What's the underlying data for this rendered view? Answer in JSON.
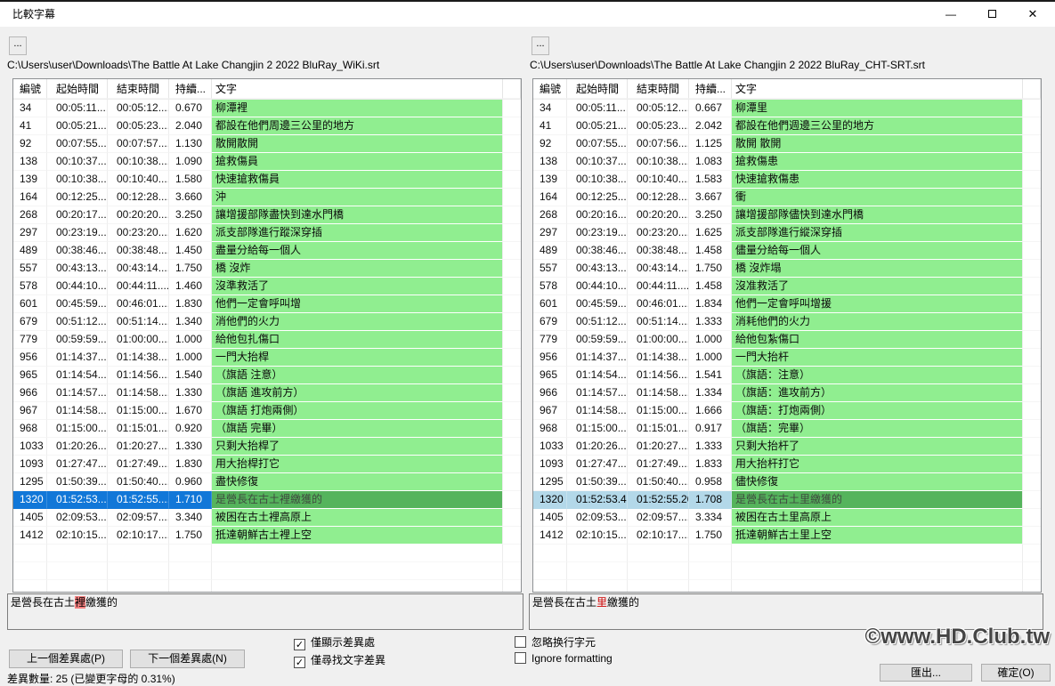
{
  "window": {
    "title": "比較字幕"
  },
  "icons": {
    "minimize": "—",
    "close": "✕"
  },
  "columns": [
    "編號",
    "起始時間",
    "結束時間",
    "持續...",
    "文字"
  ],
  "left": {
    "browse": "...",
    "path": "C:\\Users\\user\\Downloads\\The Battle At Lake Changjin 2 2022 BluRay_WiKi.srt",
    "selected_index": 22,
    "selection_style": "active",
    "rows": [
      [
        "34",
        "00:05:11....",
        "00:05:12....",
        "0.670",
        "柳潭裡"
      ],
      [
        "41",
        "00:05:21....",
        "00:05:23....",
        "2.040",
        "都設在他們周邊三公里的地方"
      ],
      [
        "92",
        "00:07:55....",
        "00:07:57....",
        "1.130",
        "散開散開"
      ],
      [
        "138",
        "00:10:37....",
        "00:10:38....",
        "1.090",
        "搶救傷員"
      ],
      [
        "139",
        "00:10:38....",
        "00:10:40....",
        "1.580",
        "快速搶救傷員"
      ],
      [
        "164",
        "00:12:25....",
        "00:12:28....",
        "3.660",
        "沖"
      ],
      [
        "268",
        "00:20:17....",
        "00:20:20....",
        "3.250",
        "讓增援部隊盡快到達水門橋"
      ],
      [
        "297",
        "00:23:19....",
        "00:23:20....",
        "1.620",
        "派支部隊進行蹤深穿插"
      ],
      [
        "489",
        "00:38:46....",
        "00:38:48....",
        "1.450",
        "盡量分給每一個人"
      ],
      [
        "557",
        "00:43:13....",
        "00:43:14....",
        "1.750",
        "橋 沒炸"
      ],
      [
        "578",
        "00:44:10....",
        "00:44:11....",
        "1.460",
        "沒準救活了"
      ],
      [
        "601",
        "00:45:59....",
        "00:46:01....",
        "1.830",
        "他們一定會呼叫增"
      ],
      [
        "679",
        "00:51:12....",
        "00:51:14....",
        "1.340",
        "消他們的火力"
      ],
      [
        "779",
        "00:59:59....",
        "01:00:00....",
        "1.000",
        "給他包扎傷口"
      ],
      [
        "956",
        "01:14:37....",
        "01:14:38....",
        "1.000",
        "一門大抬桿"
      ],
      [
        "965",
        "01:14:54....",
        "01:14:56....",
        "1.540",
        "（旗語 注意）"
      ],
      [
        "966",
        "01:14:57....",
        "01:14:58....",
        "1.330",
        "（旗語 進攻前方）"
      ],
      [
        "967",
        "01:14:58....",
        "01:15:00....",
        "1.670",
        "（旗語 打炮兩側）"
      ],
      [
        "968",
        "01:15:00....",
        "01:15:01....",
        "0.920",
        "（旗語 完畢）"
      ],
      [
        "1033",
        "01:20:26....",
        "01:20:27....",
        "1.330",
        "只剩大抬桿了"
      ],
      [
        "1093",
        "01:27:47....",
        "01:27:49....",
        "1.830",
        "用大抬桿打它"
      ],
      [
        "1295",
        "01:50:39....",
        "01:50:40....",
        "0.960",
        "盡快修復"
      ],
      [
        "1320",
        "01:52:53....",
        "01:52:55....",
        "1.710",
        "是營長在古土裡繳獲的"
      ],
      [
        "1405",
        "02:09:53....",
        "02:09:57....",
        "3.340",
        "被困在古土裡高原上"
      ],
      [
        "1412",
        "02:10:15....",
        "02:10:17....",
        "1.750",
        "抵達朝鮮古土裡上空"
      ]
    ],
    "preview": {
      "before": "是營長在古土",
      "diff": "裡",
      "after": "繳獲的"
    }
  },
  "right": {
    "browse": "...",
    "path": "C:\\Users\\user\\Downloads\\The Battle At Lake Changjin 2 2022 BluRay_CHT-SRT.srt",
    "selected_index": 22,
    "selection_style": "inactive",
    "rows": [
      [
        "34",
        "00:05:11....",
        "00:05:12....",
        "0.667",
        "柳潭里"
      ],
      [
        "41",
        "00:05:21....",
        "00:05:23....",
        "2.042",
        "都設在他們週邊三公里的地方"
      ],
      [
        "92",
        "00:07:55....",
        "00:07:56....",
        "1.125",
        "散開 散開"
      ],
      [
        "138",
        "00:10:37....",
        "00:10:38....",
        "1.083",
        "搶救傷患"
      ],
      [
        "139",
        "00:10:38....",
        "00:10:40....",
        "1.583",
        "快速搶救傷患"
      ],
      [
        "164",
        "00:12:25....",
        "00:12:28....",
        "3.667",
        "衝"
      ],
      [
        "268",
        "00:20:16....",
        "00:20:20....",
        "3.250",
        "讓增援部隊儘快到達水門橋"
      ],
      [
        "297",
        "00:23:19....",
        "00:23:20....",
        "1.625",
        "派支部隊進行縱深穿插"
      ],
      [
        "489",
        "00:38:46....",
        "00:38:48....",
        "1.458",
        "儘量分給每一個人"
      ],
      [
        "557",
        "00:43:13....",
        "00:43:14....",
        "1.750",
        "橋 沒炸塌"
      ],
      [
        "578",
        "00:44:10....",
        "00:44:11....",
        "1.458",
        "沒准救活了"
      ],
      [
        "601",
        "00:45:59....",
        "00:46:01....",
        "1.834",
        "他們一定會呼叫增援"
      ],
      [
        "679",
        "00:51:12....",
        "00:51:14....",
        "1.333",
        "消耗他們的火力"
      ],
      [
        "779",
        "00:59:59....",
        "01:00:00....",
        "1.000",
        "給他包紮傷口"
      ],
      [
        "956",
        "01:14:37....",
        "01:14:38....",
        "1.000",
        "一門大抬杆"
      ],
      [
        "965",
        "01:14:54....",
        "01:14:56....",
        "1.541",
        "（旗語：注意）"
      ],
      [
        "966",
        "01:14:57....",
        "01:14:58....",
        "1.334",
        "（旗語：進攻前方）"
      ],
      [
        "967",
        "01:14:58....",
        "01:15:00....",
        "1.666",
        "（旗語：打炮兩側）"
      ],
      [
        "968",
        "01:15:00....",
        "01:15:01....",
        "0.917",
        "（旗語：完畢）"
      ],
      [
        "1033",
        "01:20:26....",
        "01:20:27....",
        "1.333",
        "只剩大抬杆了"
      ],
      [
        "1093",
        "01:27:47....",
        "01:27:49....",
        "1.833",
        "用大抬杆打它"
      ],
      [
        "1295",
        "01:50:39....",
        "01:50:40....",
        "0.958",
        "儘快修復"
      ],
      [
        "1320",
        "01:52:53.49",
        "01:52:55.20",
        "1.708",
        "是營長在古土里繳獲的"
      ],
      [
        "1405",
        "02:09:53....",
        "02:09:57....",
        "3.334",
        "被困在古土里高原上"
      ],
      [
        "1412",
        "02:10:15....",
        "02:10:17....",
        "1.750",
        "抵達朝鮮古土里上空"
      ]
    ],
    "preview": {
      "before": "是營長在古土",
      "diff": "里",
      "after": "繳獲的"
    }
  },
  "footer": {
    "prev_button": "上一個差異處(P)",
    "next_button": "下一個差異處(N)",
    "checkboxes": [
      {
        "label": "僅顯示差異處",
        "checked": true
      },
      {
        "label": "僅尋找文字差異",
        "checked": true
      },
      {
        "label": "忽略换行字元",
        "checked": false
      },
      {
        "label": "Ignore formatting",
        "checked": false
      }
    ],
    "status": "差異數量: 25 (已變更字母的 0.31%)",
    "export_button": "匯出...",
    "ok_button": "確定(O)",
    "watermark": "©www.HD.Club.tw"
  }
}
